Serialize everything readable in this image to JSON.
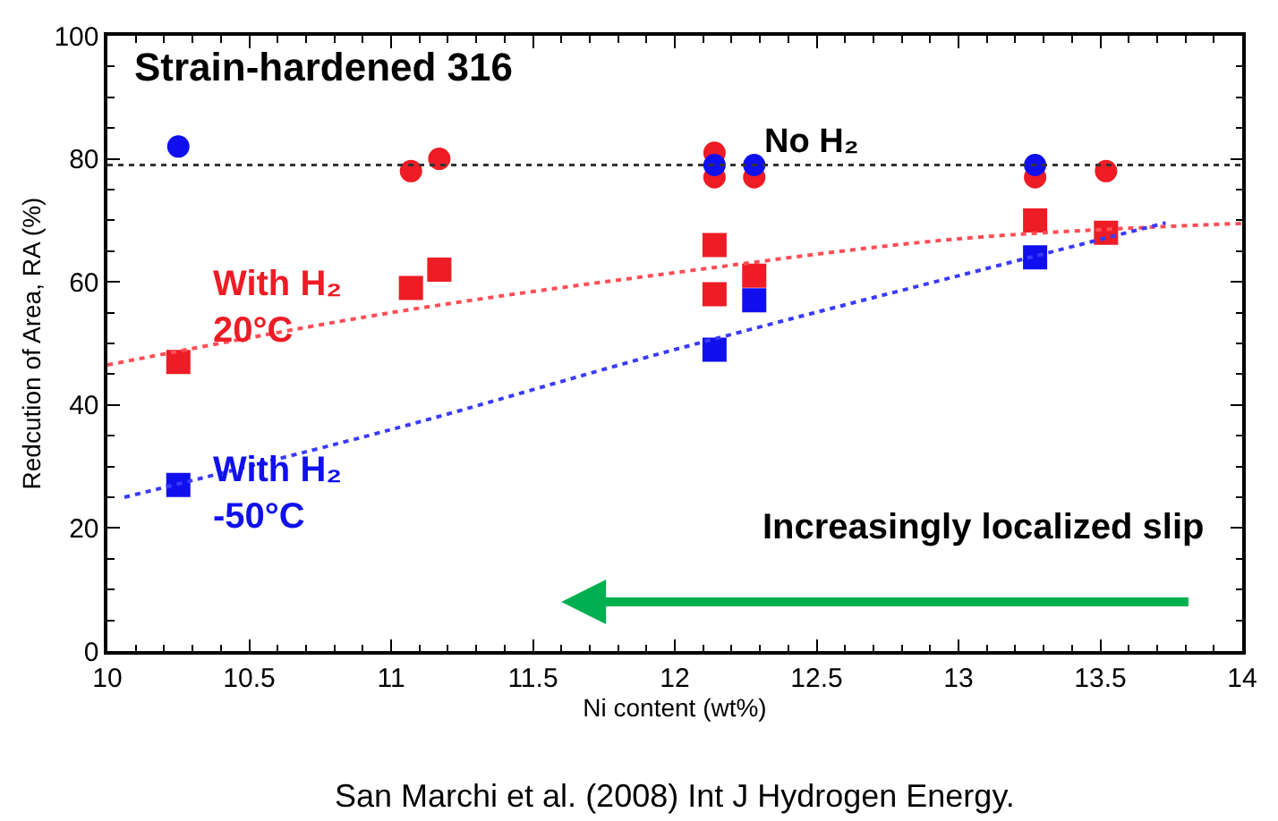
{
  "chart_data": {
    "type": "scatter",
    "title": "Strain-hardened 316",
    "xlabel": "Ni content (wt%)",
    "ylabel": "Redcution of Area, RA (%)",
    "xlim": [
      10,
      14
    ],
    "xticks": [
      10,
      10.5,
      11,
      11.5,
      12,
      12.5,
      13,
      13.5,
      14
    ],
    "ylim": [
      0,
      100
    ],
    "yticks": [
      0,
      20,
      40,
      60,
      80,
      100
    ],
    "series": [
      {
        "color": "#ee1c25",
        "marker": "circle",
        "x": [
          11.07,
          11.17,
          12.14,
          12.14,
          12.28,
          13.27,
          13.52
        ],
        "values": [
          78,
          80,
          81,
          77,
          77,
          77,
          78
        ]
      },
      {
        "color": "#1010ee",
        "marker": "circle",
        "x": [
          10.25,
          12.14,
          12.28,
          13.27
        ],
        "values": [
          82,
          79,
          79,
          79
        ]
      },
      {
        "name": "With H₂\n20°C",
        "color": "#ee1c25",
        "marker": "square",
        "x": [
          10.25,
          11.07,
          11.17,
          12.14,
          12.14,
          12.28,
          13.27,
          13.52
        ],
        "values": [
          47,
          59,
          62,
          66,
          58,
          61,
          70,
          68
        ]
      },
      {
        "name": "With H₂\n-50°C",
        "color": "#1010ee",
        "marker": "square",
        "x": [
          10.25,
          12.14,
          12.28,
          13.27
        ],
        "values": [
          27,
          49,
          57,
          64
        ]
      },
      {
        "type": "line",
        "color": "#ff4d55",
        "line_style": "dotted",
        "marker": "none",
        "x": [
          10,
          11,
          12,
          13,
          14
        ],
        "values": [
          46.5,
          55,
          61.5,
          67,
          69.5
        ]
      },
      {
        "type": "line",
        "color": "#3a3aff",
        "line_style": "dotted",
        "marker": "none",
        "x": [
          10.06,
          11,
          12,
          13,
          13.73
        ],
        "values": [
          25,
          36,
          49,
          61,
          69.6
        ]
      }
    ],
    "ref_lines": [
      {
        "axis": "y",
        "value": 79,
        "label": "No H₂",
        "color": "#333333",
        "line_style": "dotted"
      }
    ],
    "annotations": [
      "Increasingly localized slip",
      "San Marchi et al. (2008) Int J Hydrogen Energy."
    ]
  }
}
